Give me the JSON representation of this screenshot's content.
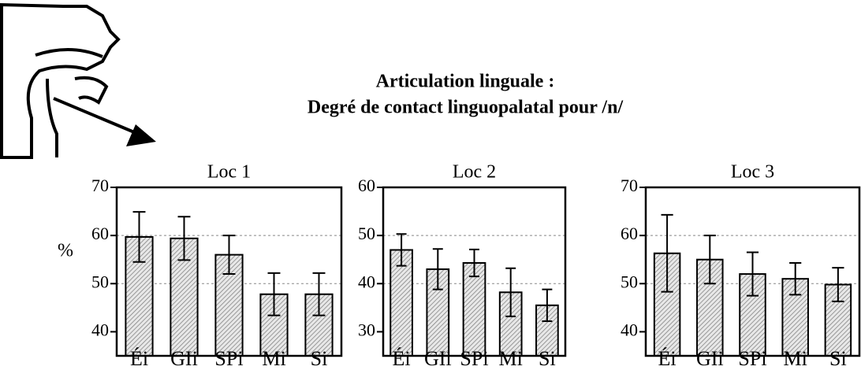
{
  "title": [
    "Articulation linguale :",
    "Degré de contact linguopalatal pour /n/"
  ],
  "chart_data": [
    {
      "type": "bar",
      "title": "Loc 1",
      "y_label": "%",
      "categories": [
        "Éi",
        "GIi",
        "SPi",
        "Mi",
        "Si"
      ],
      "values": [
        59.7,
        59.4,
        56,
        47.8,
        47.8
      ],
      "errors": [
        5.2,
        4.5,
        4,
        4.4,
        4.4
      ],
      "color": "#cfcfcf",
      "ylim": [
        35,
        70
      ],
      "yticks": [
        40,
        50,
        60,
        70
      ],
      "grid": true
    },
    {
      "type": "bar",
      "title": "Loc 2",
      "categories": [
        "Éi",
        "GIi",
        "SPi",
        "Mi",
        "Si"
      ],
      "values": [
        47,
        43,
        44.3,
        38.2,
        35.5
      ],
      "errors": [
        3.3,
        4.2,
        2.8,
        5,
        3.3
      ],
      "color": "#cfcfcf",
      "ylim": [
        25,
        60
      ],
      "yticks": [
        30,
        40,
        50,
        60
      ],
      "grid": true
    },
    {
      "type": "bar",
      "title": "Loc 3",
      "categories": [
        "Éi",
        "GIi",
        "SPi",
        "Mi",
        "Si"
      ],
      "values": [
        56.3,
        55,
        52,
        51,
        49.8
      ],
      "errors": [
        8,
        5,
        4.5,
        3.3,
        3.5
      ],
      "color": "#cfcfcf",
      "ylim": [
        35,
        70
      ],
      "yticks": [
        40,
        50,
        60,
        70
      ],
      "grid": true
    }
  ]
}
